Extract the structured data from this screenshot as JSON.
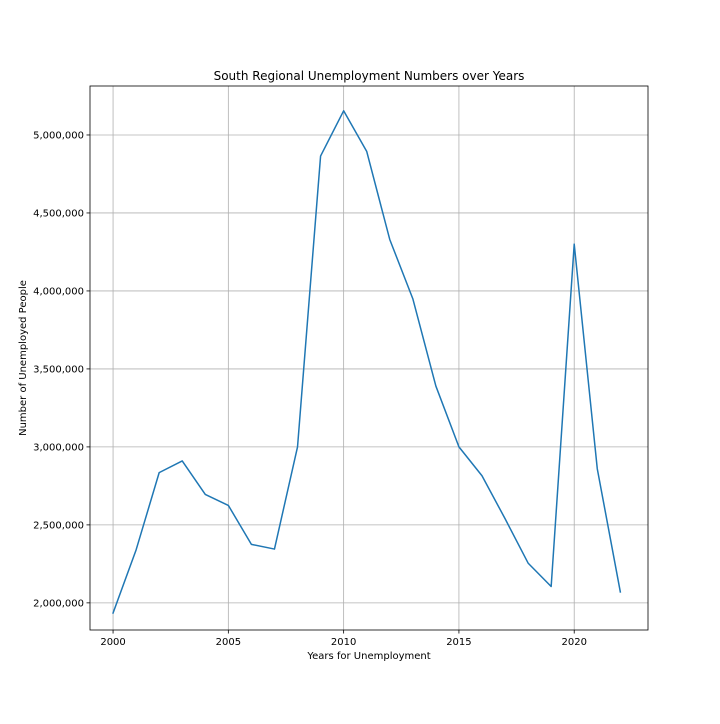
{
  "chart_data": {
    "type": "line",
    "title": "South Regional Unemployment Numbers over Years",
    "xlabel": "Years for Unemployment",
    "ylabel": "Number of Unemployed People",
    "xlim": [
      1999,
      2023.2
    ],
    "ylim": [
      1826000,
      5314000
    ],
    "xticks": [
      2000,
      2005,
      2010,
      2015,
      2020
    ],
    "xtick_labels": [
      "2000",
      "2005",
      "2010",
      "2015",
      "2020"
    ],
    "yticks": [
      2000000,
      2500000,
      3000000,
      3500000,
      4000000,
      4500000,
      5000000
    ],
    "ytick_labels": [
      "2,000,000",
      "2,500,000",
      "3,000,000",
      "3,500,000",
      "4,000,000",
      "4,500,000",
      "5,000,000"
    ],
    "grid": true,
    "series": [
      {
        "color": "#1f77b4",
        "x": [
          2000,
          2001,
          2002,
          2003,
          2004,
          2005,
          2006,
          2007,
          2008,
          2009,
          2010,
          2011,
          2012,
          2013,
          2014,
          2015,
          2016,
          2017,
          2018,
          2019,
          2020,
          2021,
          2022
        ],
        "values": [
          1935000,
          2340000,
          2835000,
          2910000,
          2695000,
          2625000,
          2375000,
          2345000,
          3000000,
          4865000,
          5155000,
          4895000,
          4330000,
          3950000,
          3390000,
          3000000,
          2815000,
          2540000,
          2255000,
          2105000,
          4300000,
          2860000,
          2070000
        ]
      }
    ]
  }
}
